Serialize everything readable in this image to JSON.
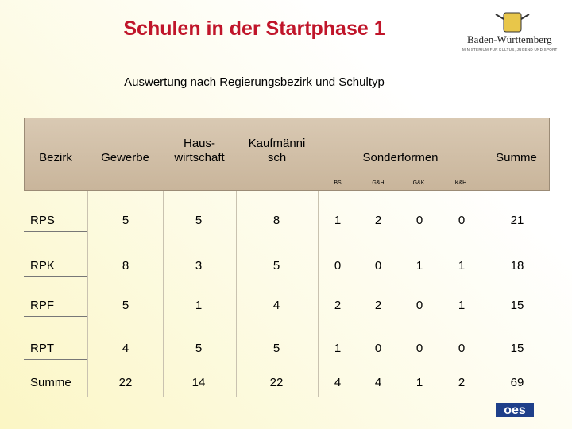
{
  "header": {
    "title": "Schulen in der Startphase 1",
    "subtitle": "Auswertung nach Regierungsbezirk und Schultyp",
    "logo_name": "Baden-Württemberg",
    "logo_ministry": "MINISTERIUM FÜR KULTUS, JUGEND UND SPORT"
  },
  "table": {
    "headers": [
      "Bezirk",
      "Gewerbe",
      "Haus-\nwirtschaft",
      "Kaufmänni\nsch",
      "Sonderformen",
      "Summe"
    ],
    "subheaders": [
      "BS",
      "G&H",
      "G&K",
      "K&H"
    ],
    "rows": [
      [
        "RPS",
        5,
        5,
        8,
        1,
        2,
        0,
        0,
        21
      ],
      [
        "RPK",
        8,
        3,
        5,
        0,
        0,
        1,
        1,
        18
      ],
      [
        "RPF",
        5,
        1,
        4,
        2,
        2,
        0,
        1,
        15
      ],
      [
        "RPT",
        4,
        5,
        5,
        1,
        0,
        0,
        0,
        15
      ],
      [
        "Summe",
        22,
        14,
        22,
        4,
        4,
        1,
        2,
        69
      ]
    ]
  },
  "footer": {
    "logo": "oes"
  }
}
